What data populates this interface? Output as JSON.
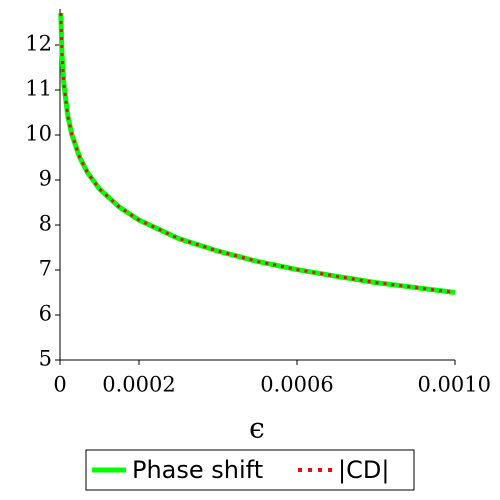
{
  "chart_data": {
    "type": "line",
    "x": [
      2e-06,
      5e-06,
      1e-05,
      2e-05,
      3e-05,
      5e-05,
      7e-05,
      0.0001,
      0.00015,
      0.0002,
      0.0003,
      0.0004,
      0.0005,
      0.0006,
      0.0007,
      0.0008,
      0.0009,
      0.001
    ],
    "series": [
      {
        "name": "Phase shift",
        "color": "#00ff00",
        "style": "solid",
        "values": [
          12.71,
          11.8,
          11.11,
          10.41,
          10.01,
          9.5,
          9.16,
          8.8,
          8.4,
          8.11,
          7.7,
          7.42,
          7.19,
          7.01,
          6.86,
          6.72,
          6.61,
          6.5
        ]
      },
      {
        "name": "|CD|",
        "color": "#dd1111",
        "style": "dotted",
        "values": [
          12.71,
          11.8,
          11.11,
          10.41,
          10.01,
          9.5,
          9.16,
          8.8,
          8.4,
          8.11,
          7.7,
          7.42,
          7.19,
          7.01,
          6.86,
          6.72,
          6.61,
          6.5
        ]
      }
    ],
    "x_label": "ϵ",
    "xlim": [
      0,
      0.001
    ],
    "xticks": [
      0,
      0.0002,
      0.0006,
      {
        "value": 0.001,
        "label": "0.0010"
      }
    ],
    "ylim": [
      5,
      12.8
    ],
    "yticks": [
      5,
      6,
      7,
      8,
      9,
      10,
      11,
      12
    ],
    "legend": "bottom"
  }
}
